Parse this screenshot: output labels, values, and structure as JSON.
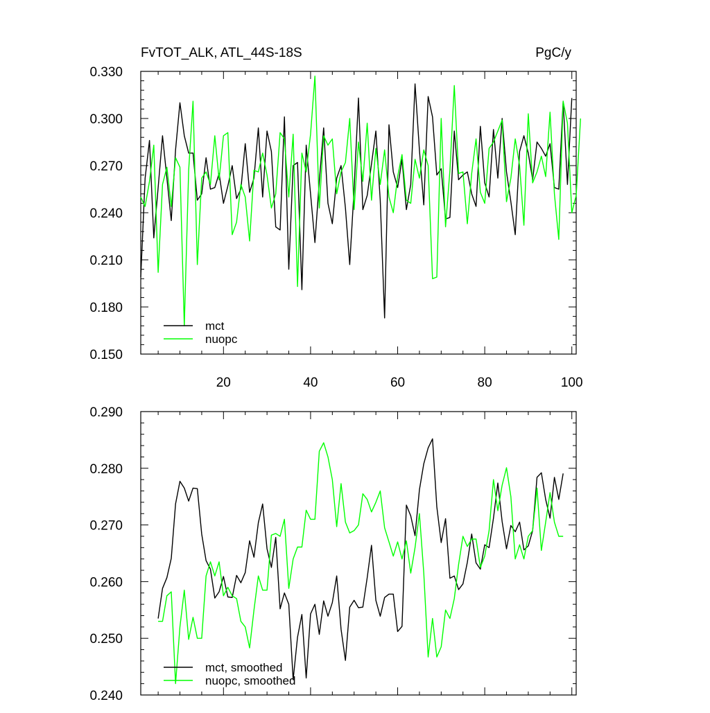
{
  "chart_data": [
    {
      "type": "line",
      "title": "FvTOT_ALK, ATL_44S-18S",
      "units": "PgC/y",
      "xlim": [
        1,
        101
      ],
      "ylim": [
        0.15,
        0.33
      ],
      "xticks": [
        20,
        40,
        60,
        80,
        100
      ],
      "xtick_labels": [
        "20",
        "40",
        "60",
        "80",
        "100"
      ],
      "yticks": [
        0.15,
        0.18,
        0.21,
        0.24,
        0.27,
        0.3,
        0.33
      ],
      "ytick_labels": [
        "0.150",
        "0.180",
        "0.210",
        "0.240",
        "0.270",
        "0.300",
        "0.330"
      ],
      "legend": "bottom-left",
      "x_start": 1,
      "series": [
        {
          "name": "mct",
          "color": "#000000",
          "values": [
            0.199,
            0.262,
            0.286,
            0.224,
            0.256,
            0.289,
            0.262,
            0.235,
            0.28,
            0.31,
            0.289,
            0.278,
            0.278,
            0.248,
            0.252,
            0.275,
            0.255,
            0.256,
            0.265,
            0.246,
            0.257,
            0.27,
            0.249,
            0.255,
            0.284,
            0.253,
            0.262,
            0.294,
            0.25,
            0.292,
            0.279,
            0.231,
            0.229,
            0.301,
            0.204,
            0.27,
            0.272,
            0.191,
            0.283,
            0.252,
            0.221,
            0.26,
            0.294,
            0.246,
            0.233,
            0.262,
            0.27,
            0.243,
            0.207,
            0.255,
            0.313,
            0.242,
            0.251,
            0.271,
            0.292,
            0.248,
            0.173,
            0.296,
            0.266,
            0.256,
            0.274,
            0.242,
            0.258,
            0.322,
            0.28,
            0.245,
            0.314,
            0.301,
            0.264,
            0.268,
            0.236,
            0.237,
            0.292,
            0.261,
            0.264,
            0.266,
            0.252,
            0.244,
            0.295,
            0.259,
            0.25,
            0.293,
            0.262,
            0.3,
            0.266,
            0.247,
            0.226,
            0.279,
            0.289,
            0.278,
            0.261,
            0.285,
            0.281,
            0.276,
            0.284,
            0.256,
            0.255,
            0.311,
            0.258,
            0.313
          ]
        },
        {
          "name": "nuopc",
          "color": "#00ff00",
          "values": [
            0.25,
            0.244,
            0.26,
            0.283,
            0.202,
            0.258,
            0.269,
            0.244,
            0.275,
            0.269,
            0.168,
            0.267,
            0.311,
            0.207,
            0.262,
            0.266,
            0.258,
            0.289,
            0.261,
            0.289,
            0.291,
            0.226,
            0.234,
            0.258,
            0.25,
            0.222,
            0.267,
            0.266,
            0.278,
            0.264,
            0.243,
            0.252,
            0.291,
            0.287,
            0.25,
            0.29,
            0.193,
            0.278,
            0.266,
            0.29,
            0.327,
            0.243,
            0.289,
            0.283,
            0.287,
            0.252,
            0.266,
            0.272,
            0.3,
            0.242,
            0.285,
            0.26,
            0.297,
            0.248,
            0.281,
            0.258,
            0.28,
            0.25,
            0.24,
            0.263,
            0.277,
            0.248,
            0.246,
            0.274,
            0.262,
            0.28,
            0.27,
            0.198,
            0.199,
            0.3,
            0.231,
            0.267,
            0.321,
            0.265,
            0.266,
            0.233,
            0.265,
            0.287,
            0.253,
            0.246,
            0.281,
            0.285,
            0.292,
            0.299,
            0.247,
            0.262,
            0.287,
            0.27,
            0.232,
            0.303,
            0.259,
            0.266,
            0.276,
            0.263,
            0.304,
            0.252,
            0.223,
            0.311,
            0.297,
            0.24,
            0.251,
            0.3
          ]
        }
      ]
    },
    {
      "type": "line",
      "title": "",
      "xlim": [
        1,
        101
      ],
      "ylim": [
        0.24,
        0.29
      ],
      "xticks": [
        20,
        40,
        60,
        80,
        100
      ],
      "yticks": [
        0.24,
        0.25,
        0.26,
        0.27,
        0.28,
        0.29
      ],
      "ytick_labels": [
        "0.240",
        "0.250",
        "0.260",
        "0.270",
        "0.280",
        "0.290"
      ],
      "legend": "bottom-left",
      "x_start": 5,
      "series": [
        {
          "name": "mct, smoothed",
          "color": "#000000",
          "values": [
            0.2535,
            0.2588,
            0.2607,
            0.2641,
            0.2737,
            0.2777,
            0.2765,
            0.2742,
            0.2765,
            0.2764,
            0.2684,
            0.2637,
            0.2622,
            0.2571,
            0.2582,
            0.2609,
            0.2573,
            0.2572,
            0.2611,
            0.2598,
            0.2616,
            0.2672,
            0.2643,
            0.2704,
            0.2737,
            0.2658,
            0.2625,
            0.2678,
            0.2552,
            0.258,
            0.256,
            0.2427,
            0.2502,
            0.2542,
            0.243,
            0.2543,
            0.256,
            0.2507,
            0.2566,
            0.2539,
            0.2563,
            0.261,
            0.2516,
            0.2461,
            0.2555,
            0.2567,
            0.2554,
            0.2555,
            0.2607,
            0.2664,
            0.2567,
            0.2539,
            0.2572,
            0.2578,
            0.2578,
            0.2512,
            0.2521,
            0.2735,
            0.2716,
            0.2681,
            0.2762,
            0.2808,
            0.2836,
            0.2852,
            0.2732,
            0.2669,
            0.2711,
            0.2606,
            0.261,
            0.2586,
            0.2596,
            0.2634,
            0.2684,
            0.2633,
            0.2622,
            0.2665,
            0.266,
            0.2712,
            0.2774,
            0.2706,
            0.2658,
            0.2699,
            0.2688,
            0.2705,
            0.2656,
            0.2663,
            0.269,
            0.2784,
            0.2792,
            0.2745,
            0.2712,
            0.2784,
            0.2745,
            0.2791
          ]
        },
        {
          "name": "nuopc, smoothed",
          "color": "#00ff00",
          "values": [
            0.253,
            0.253,
            0.2575,
            0.2582,
            0.242,
            0.252,
            0.2585,
            0.2498,
            0.2537,
            0.25,
            0.25,
            0.261,
            0.2635,
            0.261,
            0.2635,
            0.2575,
            0.259,
            0.2575,
            0.257,
            0.253,
            0.252,
            0.2483,
            0.255,
            0.261,
            0.2585,
            0.2585,
            0.2682,
            0.2685,
            0.268,
            0.271,
            0.2588,
            0.264,
            0.2661,
            0.2661,
            0.2726,
            0.271,
            0.271,
            0.283,
            0.2845,
            0.282,
            0.278,
            0.2697,
            0.2773,
            0.2705,
            0.2686,
            0.269,
            0.27,
            0.2755,
            0.2745,
            0.2723,
            0.274,
            0.276,
            0.2695,
            0.267,
            0.2645,
            0.267,
            0.264,
            0.2672,
            0.2615,
            0.266,
            0.272,
            0.2615,
            0.2467,
            0.2535,
            0.2467,
            0.2485,
            0.255,
            0.2535,
            0.257,
            0.263,
            0.268,
            0.2662,
            0.2675,
            0.2675,
            0.2625,
            0.2645,
            0.269,
            0.278,
            0.2725,
            0.277,
            0.2801,
            0.275,
            0.264,
            0.2665,
            0.264,
            0.268,
            0.269,
            0.2765,
            0.2655,
            0.2705,
            0.2757,
            0.2705,
            0.268,
            0.268
          ]
        }
      ]
    }
  ]
}
